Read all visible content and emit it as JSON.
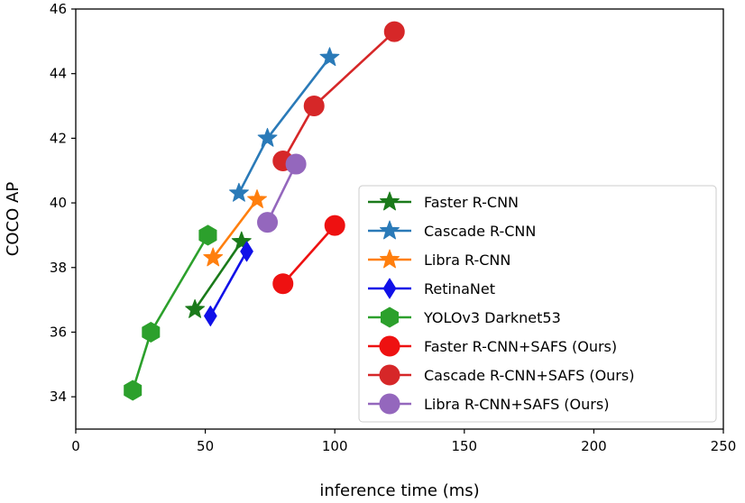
{
  "chart_data": {
    "type": "line",
    "title": "",
    "xlabel": "inference time (ms)",
    "ylabel": "COCO AP",
    "xlim": [
      0,
      250
    ],
    "ylim": [
      33,
      46
    ],
    "x_ticks": [
      "0",
      "50",
      "100",
      "150",
      "200",
      "250"
    ],
    "y_ticks": [
      "34",
      "36",
      "38",
      "40",
      "42",
      "44",
      "46"
    ],
    "grid": false,
    "legend_position": "bottom-right",
    "series": [
      {
        "name": "Faster R-CNN",
        "marker": "star",
        "color": "#1a7a1a",
        "points": [
          [
            46,
            36.7
          ],
          [
            64,
            38.8
          ]
        ]
      },
      {
        "name": "Cascade R-CNN",
        "marker": "star",
        "color": "#2a7ab8",
        "points": [
          [
            63,
            40.3
          ],
          [
            74,
            42.0
          ],
          [
            98,
            44.5
          ]
        ]
      },
      {
        "name": "Libra R-CNN",
        "marker": "star",
        "color": "#ff7f0e",
        "points": [
          [
            53,
            38.3
          ],
          [
            70,
            40.1
          ]
        ]
      },
      {
        "name": "RetinaNet",
        "marker": "diamond",
        "color": "#1010e8",
        "points": [
          [
            52,
            36.5
          ],
          [
            66,
            38.5
          ]
        ]
      },
      {
        "name": "YOLOv3 Darknet53",
        "marker": "hexagon",
        "color": "#2ca02c",
        "points": [
          [
            22,
            34.2
          ],
          [
            29,
            36.0
          ],
          [
            51,
            39.0
          ]
        ]
      },
      {
        "name": "Faster R-CNN+SAFS (Ours)",
        "marker": "circle",
        "color": "#ee1111",
        "points": [
          [
            80,
            37.5
          ],
          [
            100,
            39.3
          ]
        ]
      },
      {
        "name": "Cascade R-CNN+SAFS (Ours)",
        "marker": "circle",
        "color": "#d62728",
        "points": [
          [
            80,
            41.3
          ],
          [
            92,
            43.0
          ],
          [
            123,
            45.3
          ]
        ]
      },
      {
        "name": "Libra R-CNN+SAFS (Ours)",
        "marker": "circle",
        "color": "#9467bd",
        "points": [
          [
            74,
            39.4
          ],
          [
            85,
            41.2
          ]
        ]
      }
    ]
  }
}
